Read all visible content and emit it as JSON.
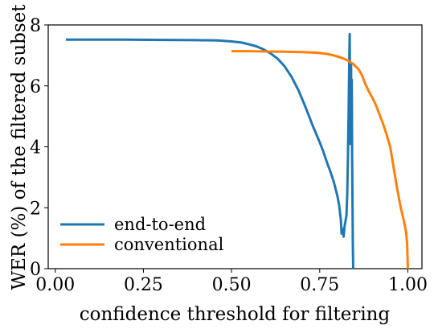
{
  "chart_data": {
    "type": "line",
    "xlabel": "confidence threshold for filtering",
    "ylabel": "WER (%) of the filtered subset",
    "xlim": [
      -0.02,
      1.04
    ],
    "ylim": [
      0,
      8
    ],
    "xticks": [
      0.0,
      0.25,
      0.5,
      0.75,
      1.0
    ],
    "xtick_labels": [
      "0.00",
      "0.25",
      "0.50",
      "0.75",
      "1.00"
    ],
    "yticks": [
      0,
      2,
      4,
      6,
      8
    ],
    "ytick_labels": [
      "0",
      "2",
      "4",
      "6",
      "8"
    ],
    "grid": false,
    "legend_position": "lower-left",
    "series": [
      {
        "name": "end-to-end",
        "color": "#1f77b4",
        "points": [
          [
            0.03,
            7.52
          ],
          [
            0.1,
            7.52
          ],
          [
            0.2,
            7.52
          ],
          [
            0.3,
            7.51
          ],
          [
            0.4,
            7.5
          ],
          [
            0.46,
            7.49
          ],
          [
            0.5,
            7.46
          ],
          [
            0.53,
            7.42
          ],
          [
            0.55,
            7.36
          ],
          [
            0.57,
            7.3
          ],
          [
            0.59,
            7.2
          ],
          [
            0.61,
            7.07
          ],
          [
            0.63,
            6.9
          ],
          [
            0.65,
            6.65
          ],
          [
            0.67,
            6.3
          ],
          [
            0.69,
            5.85
          ],
          [
            0.71,
            5.3
          ],
          [
            0.73,
            4.7
          ],
          [
            0.75,
            4.15
          ],
          [
            0.76,
            3.85
          ],
          [
            0.77,
            3.5
          ],
          [
            0.78,
            3.2
          ],
          [
            0.79,
            2.85
          ],
          [
            0.8,
            2.4
          ],
          [
            0.805,
            2.1
          ],
          [
            0.81,
            1.6
          ],
          [
            0.812,
            1.15
          ],
          [
            0.815,
            1.3
          ],
          [
            0.818,
            1.05
          ],
          [
            0.82,
            1.35
          ],
          [
            0.823,
            1.55
          ],
          [
            0.826,
            1.75
          ],
          [
            0.828,
            2.4
          ],
          [
            0.83,
            3.6
          ],
          [
            0.832,
            5.2
          ],
          [
            0.834,
            6.9
          ],
          [
            0.835,
            7.7
          ],
          [
            0.836,
            5.8
          ],
          [
            0.837,
            4.1
          ],
          [
            0.838,
            5.9
          ],
          [
            0.839,
            6.7
          ],
          [
            0.84,
            4.2
          ],
          [
            0.841,
            6.2
          ],
          [
            0.842,
            3.8
          ],
          [
            0.843,
            2.2
          ],
          [
            0.844,
            0.8
          ],
          [
            0.845,
            0.0
          ]
        ]
      },
      {
        "name": "conventional",
        "color": "#ff7f0e",
        "points": [
          [
            0.5,
            7.14
          ],
          [
            0.55,
            7.14
          ],
          [
            0.6,
            7.13
          ],
          [
            0.65,
            7.12
          ],
          [
            0.7,
            7.11
          ],
          [
            0.74,
            7.09
          ],
          [
            0.77,
            7.05
          ],
          [
            0.79,
            7.0
          ],
          [
            0.81,
            6.93
          ],
          [
            0.83,
            6.83
          ],
          [
            0.845,
            6.72
          ],
          [
            0.86,
            6.55
          ],
          [
            0.87,
            6.35
          ],
          [
            0.88,
            6.05
          ],
          [
            0.89,
            5.8
          ],
          [
            0.9,
            5.6
          ],
          [
            0.91,
            5.35
          ],
          [
            0.92,
            5.05
          ],
          [
            0.93,
            4.75
          ],
          [
            0.94,
            4.4
          ],
          [
            0.95,
            4.0
          ],
          [
            0.96,
            3.3
          ],
          [
            0.97,
            2.6
          ],
          [
            0.98,
            2.0
          ],
          [
            0.99,
            1.5
          ],
          [
            0.995,
            1.2
          ],
          [
            0.998,
            0.8
          ],
          [
            1.0,
            0.0
          ]
        ]
      }
    ]
  }
}
